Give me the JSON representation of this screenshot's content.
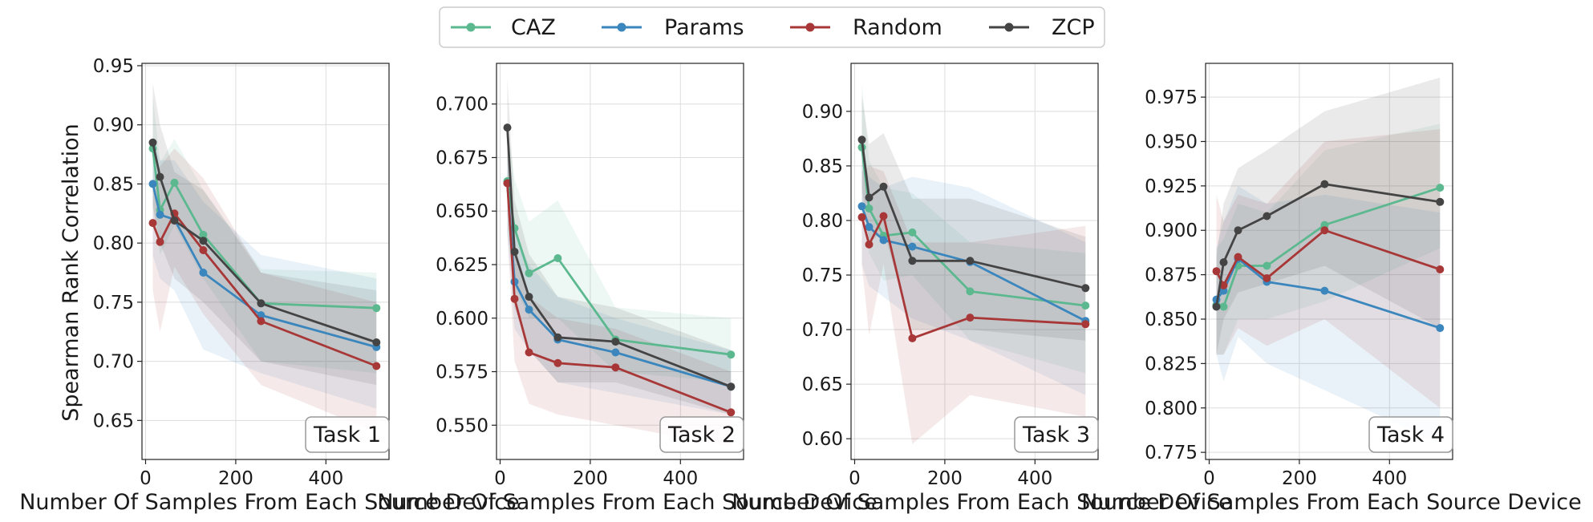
{
  "legend": {
    "items": [
      {
        "label": "CAZ",
        "color": "#5bb88f"
      },
      {
        "label": "Params",
        "color": "#3a86bd"
      },
      {
        "label": "Random",
        "color": "#a83838"
      },
      {
        "label": "ZCP",
        "color": "#444444"
      }
    ]
  },
  "chart_data": [
    {
      "type": "line",
      "task_label": "Task 1",
      "xlabel": "Number Of Samples From Each Source Device",
      "ylabel": "Spearman Rank Correlation",
      "xlim": [
        -8,
        540
      ],
      "ylim": [
        0.617,
        0.952
      ],
      "xticks": [
        0,
        200,
        400
      ],
      "yticks": [
        0.65,
        0.7,
        0.75,
        0.8,
        0.85,
        0.9,
        0.95
      ],
      "ytick_labels": [
        "0.65",
        "0.70",
        "0.75",
        "0.80",
        "0.85",
        "0.90",
        "0.95"
      ],
      "x": [
        16,
        32,
        64,
        128,
        256,
        512
      ],
      "series": [
        {
          "name": "CAZ",
          "values": [
            0.88,
            0.828,
            0.851,
            0.807,
            0.749,
            0.745
          ],
          "lower": [
            0.835,
            0.79,
            0.815,
            0.77,
            0.7,
            0.69
          ],
          "upper": [
            0.925,
            0.868,
            0.888,
            0.845,
            0.778,
            0.775
          ]
        },
        {
          "name": "Params",
          "values": [
            0.85,
            0.824,
            0.82,
            0.775,
            0.739,
            0.712
          ],
          "lower": [
            0.79,
            0.77,
            0.76,
            0.71,
            0.69,
            0.66
          ],
          "upper": [
            0.89,
            0.87,
            0.87,
            0.835,
            0.79,
            0.77
          ]
        },
        {
          "name": "Random",
          "values": [
            0.817,
            0.801,
            0.825,
            0.794,
            0.734,
            0.696
          ],
          "lower": [
            0.76,
            0.725,
            0.78,
            0.74,
            0.68,
            0.64
          ],
          "upper": [
            0.85,
            0.865,
            0.88,
            0.855,
            0.775,
            0.75
          ]
        },
        {
          "name": "ZCP",
          "values": [
            0.885,
            0.856,
            0.819,
            0.802,
            0.749,
            0.716
          ],
          "lower": [
            0.83,
            0.8,
            0.77,
            0.75,
            0.7,
            0.68
          ],
          "upper": [
            0.935,
            0.9,
            0.86,
            0.845,
            0.775,
            0.76
          ]
        }
      ]
    },
    {
      "type": "line",
      "task_label": "Task 2",
      "xlabel": "Number Of Samples From Each Source Device",
      "ylabel": "",
      "xlim": [
        -8,
        540
      ],
      "ylim": [
        0.534,
        0.719
      ],
      "xticks": [
        0,
        200,
        400
      ],
      "yticks": [
        0.55,
        0.575,
        0.6,
        0.625,
        0.65,
        0.675,
        0.7
      ],
      "ytick_labels": [
        "0.550",
        "0.575",
        "0.600",
        "0.625",
        "0.650",
        "0.675",
        "0.700"
      ],
      "x": [
        16,
        32,
        64,
        128,
        256,
        512
      ],
      "series": [
        {
          "name": "CAZ",
          "values": [
            0.664,
            0.642,
            0.621,
            0.628,
            0.59,
            0.583
          ],
          "lower": [
            0.64,
            0.615,
            0.6,
            0.6,
            0.575,
            0.57
          ],
          "upper": [
            0.69,
            0.665,
            0.645,
            0.655,
            0.605,
            0.6
          ]
        },
        {
          "name": "Params",
          "values": [
            0.663,
            0.617,
            0.604,
            0.59,
            0.584,
            0.568
          ],
          "lower": [
            0.64,
            0.595,
            0.585,
            0.57,
            0.565,
            0.555
          ],
          "upper": [
            0.69,
            0.64,
            0.625,
            0.61,
            0.6,
            0.585
          ]
        },
        {
          "name": "Random",
          "values": [
            0.663,
            0.609,
            0.584,
            0.579,
            0.577,
            0.556
          ],
          "lower": [
            0.64,
            0.58,
            0.56,
            0.555,
            0.55,
            0.54
          ],
          "upper": [
            0.69,
            0.635,
            0.61,
            0.6,
            0.595,
            0.575
          ]
        },
        {
          "name": "ZCP",
          "values": [
            0.689,
            0.631,
            0.61,
            0.591,
            0.589,
            0.568
          ],
          "lower": [
            0.665,
            0.605,
            0.585,
            0.57,
            0.57,
            0.555
          ],
          "upper": [
            0.712,
            0.655,
            0.63,
            0.61,
            0.605,
            0.585
          ]
        }
      ]
    },
    {
      "type": "line",
      "task_label": "Task 3",
      "xlabel": "Number Of Samples From Each Source Device",
      "ylabel": "",
      "xlim": [
        -8,
        540
      ],
      "ylim": [
        0.581,
        0.944
      ],
      "xticks": [
        0,
        200,
        400
      ],
      "yticks": [
        0.6,
        0.65,
        0.7,
        0.75,
        0.8,
        0.85,
        0.9
      ],
      "ytick_labels": [
        "0.60",
        "0.65",
        "0.70",
        "0.75",
        "0.80",
        "0.85",
        "0.90"
      ],
      "x": [
        16,
        32,
        64,
        128,
        256,
        512
      ],
      "series": [
        {
          "name": "CAZ",
          "values": [
            0.867,
            0.811,
            0.786,
            0.789,
            0.735,
            0.722
          ],
          "lower": [
            0.82,
            0.77,
            0.745,
            0.75,
            0.69,
            0.66
          ],
          "upper": [
            0.925,
            0.855,
            0.83,
            0.825,
            0.78,
            0.77
          ]
        },
        {
          "name": "Params",
          "values": [
            0.813,
            0.794,
            0.782,
            0.776,
            0.762,
            0.708
          ],
          "lower": [
            0.76,
            0.74,
            0.73,
            0.71,
            0.69,
            0.64
          ],
          "upper": [
            0.86,
            0.84,
            0.83,
            0.84,
            0.83,
            0.78
          ]
        },
        {
          "name": "Random",
          "values": [
            0.803,
            0.778,
            0.804,
            0.692,
            0.711,
            0.705
          ],
          "lower": [
            0.76,
            0.695,
            0.76,
            0.595,
            0.64,
            0.62
          ],
          "upper": [
            0.845,
            0.85,
            0.845,
            0.78,
            0.78,
            0.795
          ]
        },
        {
          "name": "ZCP",
          "values": [
            0.874,
            0.821,
            0.831,
            0.763,
            0.763,
            0.738
          ],
          "lower": [
            0.83,
            0.78,
            0.79,
            0.7,
            0.7,
            0.69
          ],
          "upper": [
            0.915,
            0.87,
            0.88,
            0.82,
            0.82,
            0.785
          ]
        }
      ]
    },
    {
      "type": "line",
      "task_label": "Task 4",
      "xlabel": "Number Of Samples From Each Source Device",
      "ylabel": "",
      "xlim": [
        -8,
        540
      ],
      "ylim": [
        0.771,
        0.994
      ],
      "xticks": [
        0,
        200,
        400
      ],
      "yticks": [
        0.775,
        0.8,
        0.825,
        0.85,
        0.875,
        0.9,
        0.925,
        0.95,
        0.975
      ],
      "ytick_labels": [
        "0.775",
        "0.800",
        "0.825",
        "0.850",
        "0.875",
        "0.900",
        "0.925",
        "0.950",
        "0.975"
      ],
      "x": [
        16,
        32,
        64,
        128,
        256,
        512
      ],
      "series": [
        {
          "name": "CAZ",
          "values": [
            0.858,
            0.857,
            0.88,
            0.88,
            0.903,
            0.924
          ],
          "lower": [
            0.83,
            0.83,
            0.85,
            0.85,
            0.86,
            0.89
          ],
          "upper": [
            0.89,
            0.895,
            0.915,
            0.91,
            0.945,
            0.96
          ]
        },
        {
          "name": "Params",
          "values": [
            0.861,
            0.866,
            0.884,
            0.871,
            0.866,
            0.845
          ],
          "lower": [
            0.83,
            0.815,
            0.84,
            0.825,
            0.81,
            0.78
          ],
          "upper": [
            0.89,
            0.905,
            0.925,
            0.915,
            0.92,
            0.91
          ]
        },
        {
          "name": "Random",
          "values": [
            0.877,
            0.869,
            0.885,
            0.873,
            0.9,
            0.878
          ],
          "lower": [
            0.83,
            0.83,
            0.845,
            0.835,
            0.85,
            0.8
          ],
          "upper": [
            0.92,
            0.905,
            0.92,
            0.915,
            0.95,
            0.957
          ]
        },
        {
          "name": "ZCP",
          "values": [
            0.857,
            0.882,
            0.9,
            0.908,
            0.926,
            0.916
          ],
          "lower": [
            0.83,
            0.85,
            0.865,
            0.87,
            0.88,
            0.845
          ],
          "upper": [
            0.885,
            0.915,
            0.935,
            0.945,
            0.967,
            0.986
          ]
        }
      ]
    }
  ]
}
